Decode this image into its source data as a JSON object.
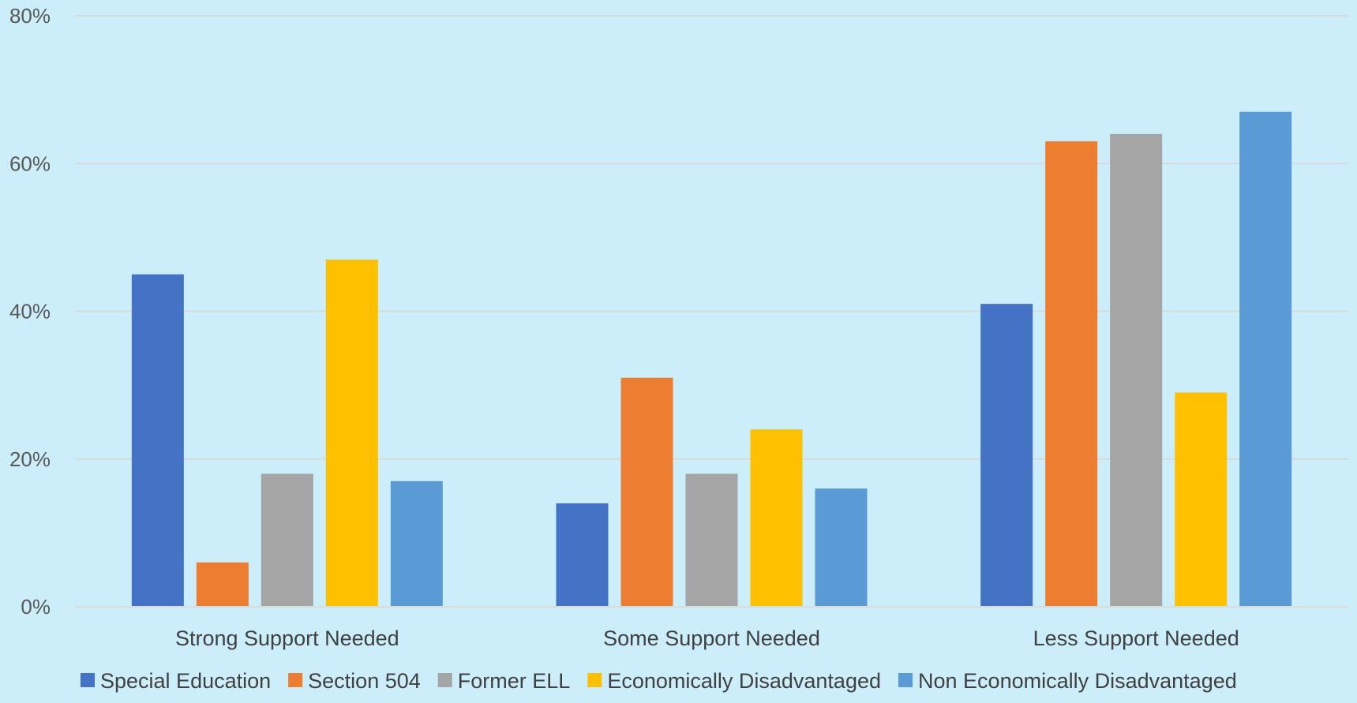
{
  "chart_data": {
    "type": "bar",
    "title": "",
    "xlabel": "",
    "ylabel": "",
    "ylim": [
      0,
      80
    ],
    "yticks": [
      0,
      20,
      40,
      60,
      80
    ],
    "ytick_labels": [
      "0%",
      "20%",
      "40%",
      "60%",
      "80%"
    ],
    "grid": true,
    "legend_position": "bottom",
    "categories": [
      "Strong Support Needed",
      "Some Support Needed",
      "Less Support Needed"
    ],
    "series": [
      {
        "name": "Special Education",
        "color": "#4472c4",
        "values": [
          45,
          14,
          41
        ]
      },
      {
        "name": "Section 504",
        "color": "#ed7d31",
        "values": [
          6,
          31,
          63
        ]
      },
      {
        "name": "Former ELL",
        "color": "#a5a5a5",
        "values": [
          18,
          18,
          64
        ]
      },
      {
        "name": "Economically Disadvantaged",
        "color": "#ffc000",
        "values": [
          47,
          24,
          29
        ]
      },
      {
        "name": "Non Economically Disadvantaged",
        "color": "#5b9bd5",
        "values": [
          17,
          16,
          67
        ]
      }
    ]
  }
}
